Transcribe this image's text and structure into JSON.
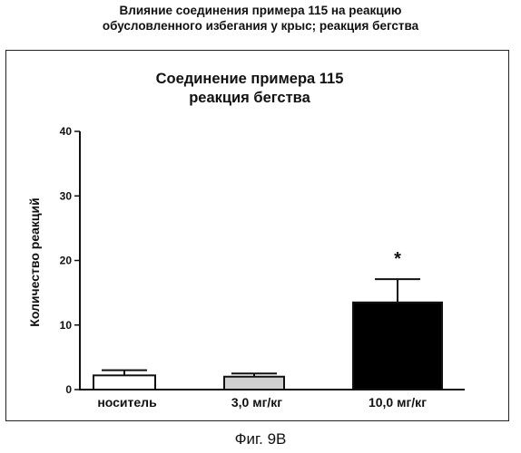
{
  "page": {
    "title_line_1": "Влияние соединения примера 115 на реакцию",
    "title_line_2": "обусловленного избегания у крыс; реакция бегства",
    "figure_caption": "Фиг. 9В"
  },
  "chart_data": {
    "type": "bar",
    "title_lines": [
      "Соединение примера 115",
      "реакция бегства"
    ],
    "xlabel": "",
    "ylabel": "Количество реакций",
    "ylim": [
      0,
      40
    ],
    "yticks": [
      0,
      10,
      20,
      30,
      40
    ],
    "categories": [
      "носитель",
      "3,0 мг/кг",
      "10,0 мг/кг"
    ],
    "values": [
      2.2,
      2.0,
      13.5
    ],
    "errors": [
      0.8,
      0.5,
      3.6
    ],
    "fills": [
      "#ffffff",
      "#d0d0d0",
      "#000000"
    ],
    "significance": [
      "",
      "",
      "*"
    ],
    "grid": false,
    "legend": "none"
  }
}
